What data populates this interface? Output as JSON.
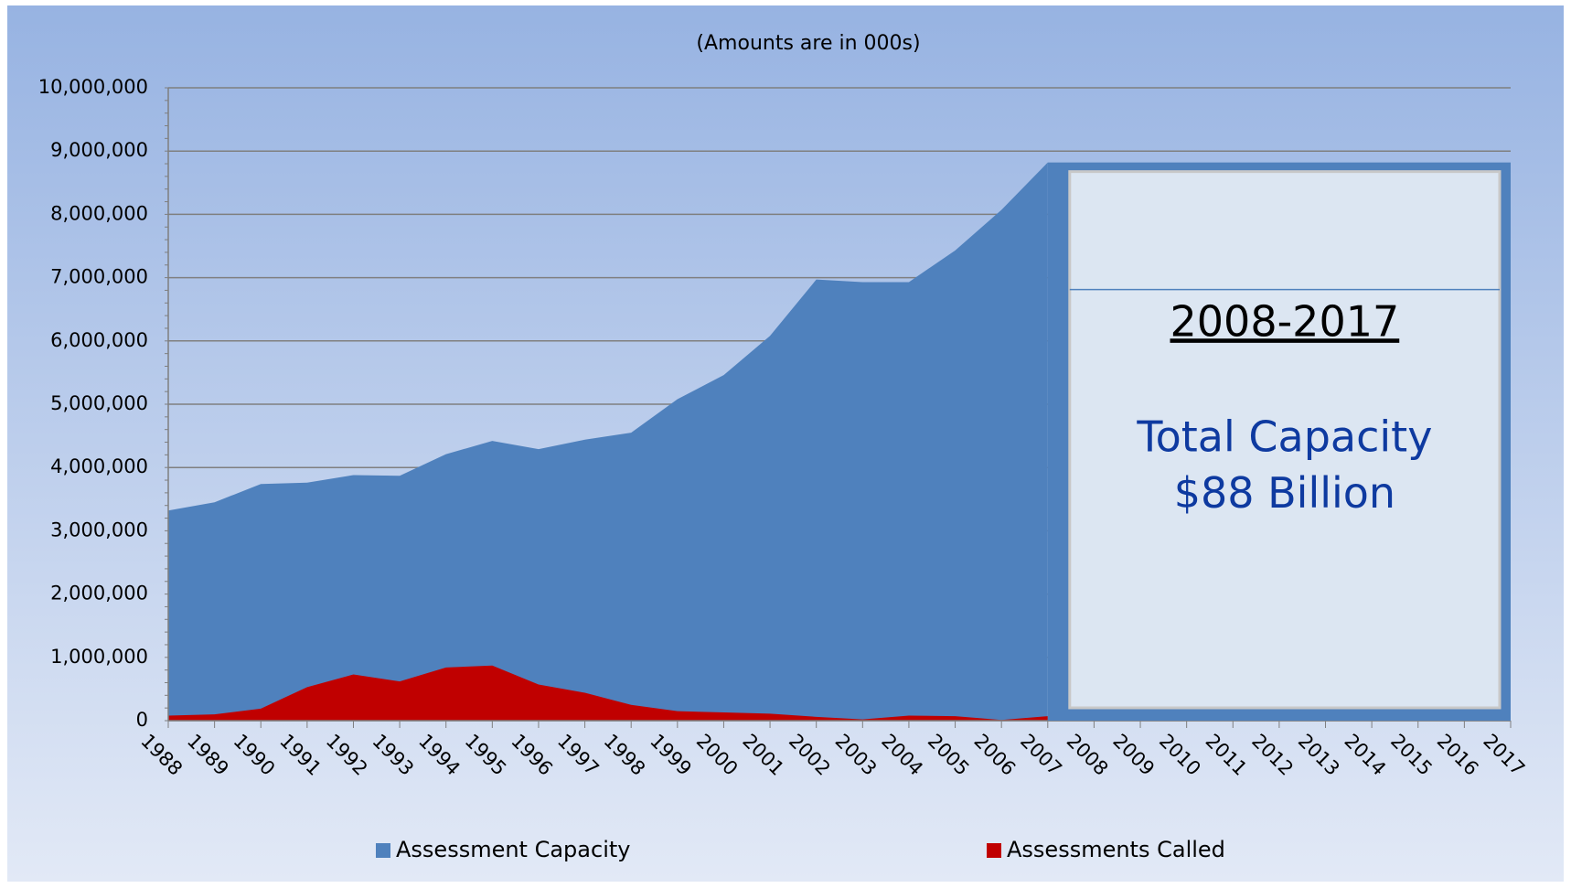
{
  "chart_data": {
    "type": "area",
    "subtitle": "(Amounts are in 000s)",
    "categories": [
      "1988",
      "1989",
      "1990",
      "1991",
      "1992",
      "1993",
      "1994",
      "1995",
      "1996",
      "1997",
      "1998",
      "1999",
      "2000",
      "2001",
      "2002",
      "2003",
      "2004",
      "2005",
      "2006",
      "2007",
      "2008",
      "2009",
      "2010",
      "2011",
      "2012",
      "2013",
      "2014",
      "2015",
      "2016",
      "2017"
    ],
    "series": [
      {
        "name": "Assessment Capacity",
        "color": "#4f81bd",
        "values": [
          3320000,
          3450000,
          3740000,
          3760000,
          3880000,
          3870000,
          4210000,
          4420000,
          4290000,
          4440000,
          4550000,
          5080000,
          5460000,
          6080000,
          6970000,
          6930000,
          6930000,
          7430000,
          8070000,
          8820000,
          null,
          null,
          null,
          null,
          null,
          null,
          null,
          null,
          null,
          null
        ]
      },
      {
        "name": "Assessments Called",
        "color": "#c00000",
        "values": [
          80000,
          100000,
          190000,
          530000,
          730000,
          620000,
          840000,
          870000,
          570000,
          440000,
          250000,
          150000,
          130000,
          110000,
          60000,
          20000,
          80000,
          70000,
          10000,
          70000,
          null,
          null,
          null,
          null,
          null,
          null,
          null,
          null,
          null,
          null
        ]
      }
    ],
    "ylim": [
      0,
      10000000
    ],
    "yticks": [
      0,
      {
        "value": 1000000,
        "label": "1,000,000"
      },
      {
        "value": 2000000,
        "label": "2,000,000"
      },
      {
        "value": 3000000,
        "label": "3,000,000"
      },
      {
        "value": 4000000,
        "label": "4,000,000"
      },
      {
        "value": 5000000,
        "label": "5,000,000"
      },
      {
        "value": 6000000,
        "label": "6,000,000"
      },
      {
        "value": 7000000,
        "label": "7,000,000"
      },
      {
        "value": 8000000,
        "label": "8,000,000"
      },
      {
        "value": 9000000,
        "label": "9,000,000"
      },
      {
        "value": 10000000,
        "label": "10,000,000"
      }
    ],
    "grid": true,
    "legend": "bottom",
    "annotation": {
      "period": "2008-2017",
      "lines": [
        "Total Capacity",
        "$88 Billion"
      ]
    }
  }
}
